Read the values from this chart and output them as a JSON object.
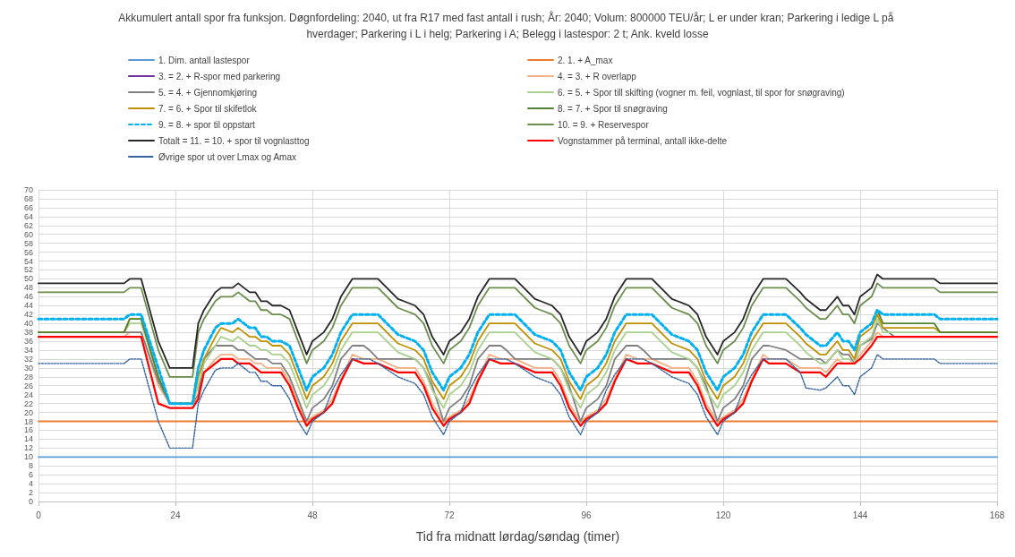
{
  "chart_data": {
    "type": "line",
    "title": "Akkumulert antall spor fra funksjon. Døgnfordeling: 2040, ut fra R17 med fast antall i rush; År: 2040; Volum: 800000 TEU/år; L er under kran; Parkering i ledige L på hverdager; Parkering i L i helg; Parkering i A; Belegg i lastespor: 2 t; Ank. kveld losse",
    "xlabel": "Tid fra midnatt lørdag/søndag (timer)",
    "x": [
      0,
      15,
      16,
      18,
      21,
      23,
      27,
      28,
      29,
      31,
      32,
      34,
      35,
      36,
      37,
      38,
      39,
      40,
      41,
      42.5,
      44,
      45.5,
      47,
      48,
      50,
      51.5,
      53,
      55,
      57,
      58,
      59.5,
      63,
      64,
      66,
      67.5,
      69,
      71,
      72,
      74,
      75.5,
      77,
      79,
      81,
      82,
      83.5,
      87,
      88,
      90,
      91.5,
      93,
      95,
      96,
      98,
      99.5,
      101,
      103,
      105,
      106,
      107.5,
      111,
      112,
      114,
      115.5,
      117,
      119,
      120,
      122,
      123.5,
      125,
      127,
      128,
      131,
      133.5,
      134.5,
      137,
      138,
      140,
      141,
      142,
      143,
      144,
      146,
      147,
      148,
      150,
      157,
      158,
      168
    ],
    "series": [
      {
        "name": "1. Dim. antall lastespor",
        "color": "#5b9bd5",
        "values": [
          10,
          10,
          10,
          10,
          10,
          10,
          10,
          10,
          10,
          10,
          10,
          10,
          10,
          10,
          10,
          10,
          10,
          10,
          10,
          10,
          10,
          10,
          10,
          10,
          10,
          10,
          10,
          10,
          10,
          10,
          10,
          10,
          10,
          10,
          10,
          10,
          10,
          10,
          10,
          10,
          10,
          10,
          10,
          10,
          10,
          10,
          10,
          10,
          10,
          10,
          10,
          10,
          10,
          10,
          10,
          10,
          10,
          10,
          10,
          10,
          10,
          10,
          10,
          10,
          10,
          10,
          10,
          10,
          10,
          10,
          10,
          10,
          10,
          10,
          10,
          10,
          10,
          10,
          10,
          10,
          10,
          10,
          10,
          10,
          10,
          10,
          10,
          10
        ]
      },
      {
        "name": "2. 1. + A_max",
        "color": "#ed7d31",
        "values": [
          18,
          18,
          18,
          18,
          18,
          18,
          18,
          18,
          18,
          18,
          18,
          18,
          18,
          18,
          18,
          18,
          18,
          18,
          18,
          18,
          18,
          18,
          18,
          18,
          18,
          18,
          18,
          18,
          18,
          18,
          18,
          18,
          18,
          18,
          18,
          18,
          18,
          18,
          18,
          18,
          18,
          18,
          18,
          18,
          18,
          18,
          18,
          18,
          18,
          18,
          18,
          18,
          18,
          18,
          18,
          18,
          18,
          18,
          18,
          18,
          18,
          18,
          18,
          18,
          18,
          18,
          18,
          18,
          18,
          18,
          18,
          18,
          18,
          18,
          18,
          18,
          18,
          18,
          18,
          18,
          18,
          18,
          18,
          18,
          18,
          18,
          18,
          18
        ]
      },
      {
        "name": "3. = 2. + R-spor med parkering",
        "color": "#7030a0",
        "values": [
          null,
          null,
          null,
          null,
          null,
          null,
          null,
          null,
          null,
          null,
          null,
          null,
          null,
          null,
          null,
          null,
          null,
          null,
          null,
          null,
          null,
          null,
          null,
          null,
          null,
          null,
          null,
          null,
          null,
          null,
          null,
          null,
          null,
          null,
          null,
          null,
          null,
          null,
          null,
          null,
          null,
          null,
          null,
          null,
          null,
          null,
          null,
          null,
          null,
          null,
          null,
          null,
          null,
          null,
          null,
          null,
          null,
          null,
          null,
          null,
          null,
          null,
          null,
          null,
          null,
          null,
          null,
          null,
          null,
          null,
          null,
          null,
          null,
          null,
          null,
          null,
          null,
          null,
          null,
          null,
          null,
          null,
          null,
          null,
          null,
          null,
          null,
          null
        ]
      },
      {
        "name": "4. = 3. + R overlapp",
        "color": "#f4b183",
        "values": [
          37,
          37,
          38,
          38,
          26,
          22,
          22,
          23,
          29,
          32,
          33,
          33,
          32,
          32,
          32,
          31,
          31,
          30,
          30,
          30,
          27,
          22,
          18,
          19,
          20.5,
          23,
          27.5,
          33,
          32,
          32,
          32,
          30,
          30,
          30,
          27,
          22,
          18,
          19,
          20.5,
          23,
          27.5,
          33,
          32,
          32,
          32,
          30,
          30,
          30,
          27,
          22,
          18,
          19,
          20.5,
          23,
          27.5,
          33,
          32,
          32,
          32,
          30,
          30,
          30,
          27,
          22,
          18,
          19,
          20.5,
          23,
          27.5,
          33,
          32,
          32,
          30,
          30,
          30,
          29,
          32,
          31,
          31,
          31,
          33,
          36,
          38,
          37,
          37,
          37,
          37,
          37
        ]
      },
      {
        "name": "5. = 4. + Gjennomkjøring",
        "color": "#7f7f7f",
        "values": [
          38,
          38,
          38,
          38,
          27,
          22,
          22,
          24,
          32,
          35,
          35,
          35,
          34,
          34,
          33,
          32,
          32,
          32,
          31,
          31,
          28,
          23,
          18,
          21,
          23,
          26,
          32,
          35,
          35,
          34,
          32,
          32,
          32,
          32,
          30,
          26,
          18,
          21,
          23,
          26,
          32,
          35,
          35,
          34,
          32,
          32,
          32,
          32,
          30,
          26,
          18,
          21,
          23,
          26,
          32,
          35,
          35,
          34,
          32,
          32,
          32,
          32,
          30,
          26,
          18,
          21,
          23,
          26,
          32,
          35,
          35,
          34,
          32,
          32,
          32,
          31,
          34,
          33,
          33,
          31,
          35,
          36.5,
          40,
          39,
          37,
          null,
          null,
          null
        ]
      },
      {
        "name": "6. = 5. + Spor till skifting (vogner m. feil, vognlast, til spor for snøgraving)",
        "color": "#a9d18e",
        "values": [
          38,
          38,
          40,
          40,
          28,
          22,
          22,
          26,
          31,
          35,
          37,
          36,
          37,
          36,
          35,
          35,
          34,
          34,
          33,
          33,
          31,
          26,
          21,
          24,
          26,
          29,
          34,
          38,
          38,
          38,
          38,
          33.5,
          33,
          32,
          30,
          25,
          21,
          24,
          26,
          29,
          34,
          38,
          38,
          38,
          38,
          33.5,
          33,
          32,
          30,
          25,
          21,
          24,
          26,
          29,
          34,
          38,
          38,
          38,
          38,
          33.5,
          33,
          32,
          30,
          25,
          21,
          24,
          26,
          29,
          34,
          38,
          38,
          38,
          35,
          33.5,
          31,
          31,
          34,
          32,
          32,
          31,
          35,
          37,
          41,
          38,
          38,
          38,
          38,
          null
        ]
      },
      {
        "name": "7. = 6. + Spor til skifetlok",
        "color": "#bf9000",
        "values": [
          38,
          38,
          41,
          41,
          28,
          22,
          22,
          28,
          32,
          37,
          39,
          38,
          39,
          38,
          37,
          37,
          36,
          36,
          35,
          35,
          33,
          28,
          23,
          26,
          28,
          31,
          36,
          40,
          40,
          40,
          40,
          35.5,
          35,
          34,
          32,
          27,
          23,
          26,
          28,
          31,
          36,
          40,
          40,
          40,
          40,
          35.5,
          35,
          34,
          32,
          27,
          23,
          26,
          28,
          31,
          36,
          40,
          40,
          40,
          40,
          35.5,
          35,
          34,
          32,
          27,
          23,
          26,
          28,
          31,
          36,
          40,
          40,
          40,
          37,
          35.5,
          33,
          33,
          36,
          34,
          34,
          32,
          37,
          39,
          42,
          39,
          39,
          39,
          38,
          38
        ]
      },
      {
        "name": "8. = 7. + Spor til snøgraving",
        "color": "#548235",
        "values": [
          38,
          38,
          41,
          41,
          28,
          22,
          22,
          30,
          34,
          null,
          null,
          null,
          null,
          null,
          null,
          null,
          null,
          null,
          null,
          null,
          null,
          null,
          null,
          null,
          null,
          null,
          null,
          null,
          null,
          null,
          null,
          null,
          null,
          null,
          null,
          null,
          null,
          null,
          null,
          null,
          null,
          null,
          null,
          null,
          null,
          null,
          null,
          null,
          null,
          null,
          null,
          null,
          null,
          null,
          null,
          null,
          null,
          null,
          null,
          null,
          null,
          null,
          null,
          null,
          null,
          null,
          null,
          null,
          null,
          null,
          null,
          null,
          null,
          null,
          null,
          null,
          null,
          null,
          null,
          null,
          null,
          null,
          43,
          40,
          40,
          40,
          38,
          38
        ]
      },
      {
        "name": "9. = 8. + spor til oppstart",
        "color": "#00b0f0",
        "line_style": "dashed",
        "values": [
          41,
          41,
          42,
          42,
          30,
          22,
          22,
          30,
          34,
          39,
          40,
          40,
          41,
          40,
          39,
          39,
          37,
          37,
          36,
          36,
          35,
          30,
          25,
          28,
          30,
          33,
          38,
          42,
          42,
          42,
          42,
          37.5,
          37,
          36,
          34,
          29,
          25,
          28,
          30,
          33,
          38,
          42,
          42,
          42,
          42,
          37.5,
          37,
          36,
          34,
          29,
          25,
          28,
          30,
          33,
          38,
          42,
          42,
          42,
          42,
          37.5,
          37,
          36,
          34,
          29,
          25,
          28,
          30,
          33,
          38,
          42,
          42,
          42,
          39,
          37.5,
          35,
          35,
          38,
          36,
          36,
          34,
          38,
          40,
          43,
          42,
          42,
          42,
          41,
          41
        ]
      },
      {
        "name": "10. = 9. + Reservespor",
        "color": "#6b8e4e",
        "values": [
          47,
          47,
          48,
          48,
          34,
          28,
          28,
          38,
          41,
          45,
          46,
          46,
          47,
          46,
          45,
          45,
          43,
          43,
          42,
          42,
          41,
          36,
          31,
          34,
          36,
          39,
          44,
          48,
          48,
          48,
          48,
          43.5,
          43,
          42,
          40,
          35,
          31,
          34,
          36,
          39,
          44,
          48,
          48,
          48,
          48,
          43.5,
          43,
          42,
          40,
          35,
          31,
          34,
          36,
          39,
          44,
          48,
          48,
          48,
          48,
          43.5,
          43,
          42,
          40,
          35,
          31,
          34,
          36,
          39,
          44,
          48,
          48,
          48,
          45,
          43.5,
          41,
          41,
          44,
          42,
          42,
          40,
          44,
          46,
          49,
          48,
          48,
          48,
          47,
          47
        ]
      },
      {
        "name": "Totalt = 11. = 10. + spor til vognlasttog",
        "color": "#262626",
        "values": [
          49,
          49,
          50,
          50,
          36,
          30,
          30,
          40,
          43,
          47,
          48,
          48,
          49,
          48,
          47,
          47,
          45,
          45,
          44,
          44,
          43,
          38,
          33,
          36,
          38,
          41,
          46,
          50,
          50,
          50,
          50,
          45.5,
          45,
          44,
          42,
          37,
          33,
          36,
          38,
          41,
          46,
          50,
          50,
          50,
          50,
          45.5,
          45,
          44,
          42,
          37,
          33,
          36,
          38,
          41,
          46,
          50,
          50,
          50,
          50,
          45.5,
          45,
          44,
          42,
          37,
          33,
          36,
          38,
          41,
          46,
          50,
          50,
          50,
          47,
          45.5,
          43,
          43,
          46,
          44,
          44,
          42,
          46,
          48,
          51,
          50,
          50,
          50,
          49,
          49
        ]
      },
      {
        "name": "Vognstammer på terminal, antall ikke-delte",
        "color": "#ff0000",
        "values": [
          37,
          37,
          37,
          37,
          22,
          21,
          21,
          23,
          29,
          31,
          32,
          32,
          31,
          31,
          31,
          30,
          29,
          29,
          29,
          29,
          26,
          21,
          17,
          18.5,
          20,
          22,
          27,
          32,
          31,
          31,
          31,
          29,
          29,
          29,
          26,
          21,
          17,
          18.5,
          20,
          22,
          27,
          32,
          31,
          31,
          31,
          29,
          29,
          29,
          26,
          21,
          17,
          18.5,
          20,
          22,
          27,
          32,
          31,
          31,
          31,
          29,
          29,
          29,
          26,
          21,
          17,
          18.5,
          20,
          22,
          27,
          32,
          31,
          31,
          29,
          29,
          29,
          28,
          31,
          31,
          31,
          31,
          32,
          35,
          37,
          37,
          37,
          37,
          37,
          37
        ]
      },
      {
        "name": "Øvrige spor ut over Lmax og Amax",
        "color": "#2e5f9e",
        "line_style": "dotted",
        "values": [
          31,
          31,
          32,
          32,
          18,
          12,
          12,
          22,
          25,
          29.5,
          30,
          30,
          31,
          30,
          29,
          29,
          27,
          27,
          26,
          26,
          23,
          18,
          15,
          18,
          20,
          25,
          28.5,
          32,
          32,
          32,
          31,
          28,
          27.5,
          26.5,
          24,
          19,
          15,
          18,
          20,
          25,
          28.5,
          32,
          32,
          32,
          31,
          28,
          27.5,
          26.5,
          24,
          19,
          15,
          18,
          20,
          25,
          28.5,
          32,
          32,
          32,
          31,
          28,
          27.5,
          26.5,
          24,
          19,
          15,
          18,
          20,
          25,
          28.5,
          32,
          32,
          32,
          29,
          25.5,
          25,
          25.5,
          28,
          26,
          26,
          24,
          28,
          30,
          33,
          32,
          32,
          32,
          31,
          31
        ]
      }
    ],
    "xlim": [
      0,
      168
    ],
    "xticks": [
      0,
      24,
      48,
      72,
      96,
      120,
      144,
      168
    ],
    "ylim": [
      0,
      70
    ],
    "yticks": [
      0,
      2,
      4,
      6,
      8,
      10,
      12,
      14,
      16,
      18,
      20,
      22,
      24,
      26,
      28,
      30,
      32,
      34,
      36,
      38,
      40,
      42,
      44,
      46,
      48,
      50,
      52,
      54,
      56,
      58,
      60,
      62,
      64,
      66,
      68,
      70
    ],
    "grid": true,
    "legend": "top",
    "marker": "none",
    "line_style": "solid"
  }
}
